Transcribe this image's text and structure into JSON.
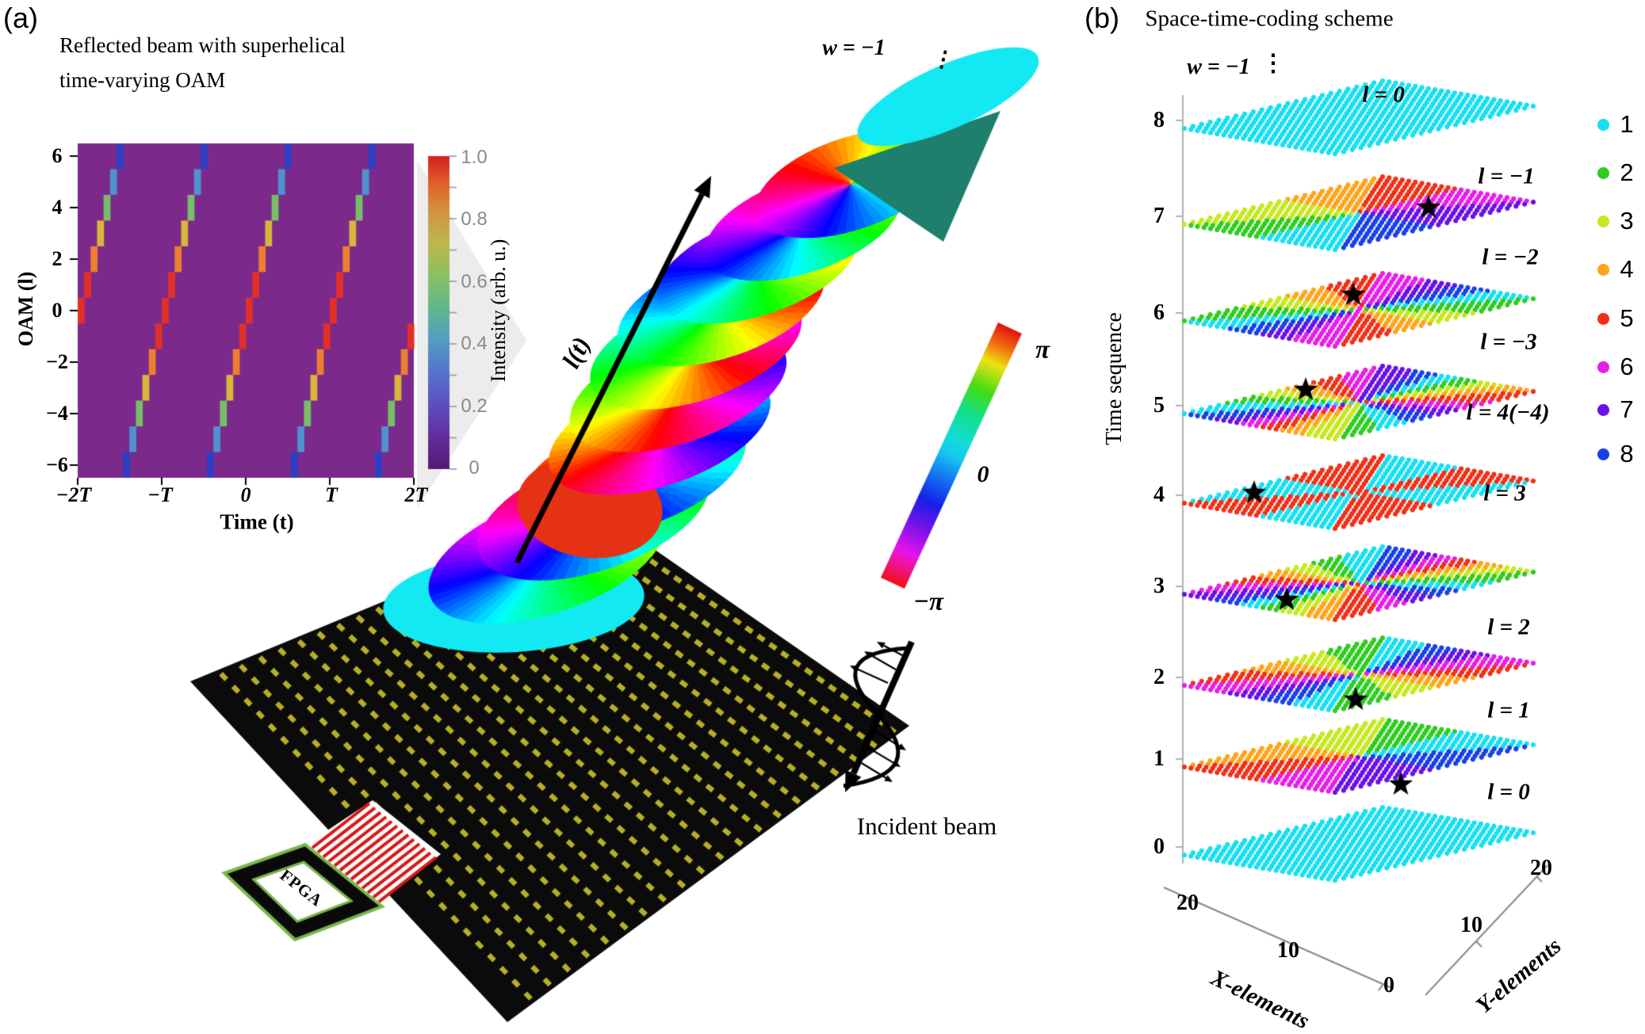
{
  "figure": {
    "panel_a": {
      "tag": "(a)",
      "title_lines": [
        "Reflected beam with superhelical",
        "time-varying OAM"
      ],
      "w_label": "w = −1",
      "ellipsis": "⋮",
      "trajectory_label": "l(t)",
      "incident_beam_label": "Incident beam",
      "fpga_label": "FPGA",
      "phase_bar_ticks": [
        "π",
        "0",
        "−π"
      ]
    },
    "panel_b": {
      "tag": "(b)",
      "title": "Space-time-coding scheme",
      "w_label": "w = −1",
      "ellipsis": "⋮"
    }
  },
  "chart_data": [
    {
      "id": "oam_heatmap",
      "type": "heatmap",
      "title": "Reflected beam with superhelical time-varying OAM",
      "xlabel": "Time (t)",
      "ylabel": "OAM (l)",
      "xtick_labels": [
        "−2T",
        "−T",
        "0",
        "T",
        "2T"
      ],
      "ytick_labels": [
        "6",
        "4",
        "2",
        "0",
        "−2",
        "−4",
        "−6"
      ],
      "ylim": [
        -6.5,
        6.5
      ],
      "periods_shown": 4,
      "steps_per_period": 13,
      "l_step_sequence": [
        0,
        1,
        2,
        3,
        4,
        5,
        6,
        -6,
        -5,
        -4,
        -3,
        -2,
        -1
      ],
      "intensity_by_abs_l": {
        "0": 1.0,
        "1": 0.95,
        "2": 0.8,
        "3": 0.62,
        "4": 0.47,
        "5": 0.3,
        "6": 0.17
      },
      "cell_colors_by_abs_l": {
        "0": "#e23027",
        "1": "#e23027",
        "2": "#ee7f30",
        "3": "#d9b63b",
        "4": "#77be66",
        "5": "#4e92ce",
        "6": "#2d3fc4"
      },
      "background_color": "#7b2a8c",
      "grid": false,
      "colorbar": {
        "label": "Intensity (arb. u.)",
        "tick_labels": [
          "1.0",
          "0.8",
          "0.6",
          "0.4",
          "0.2",
          "0"
        ]
      }
    },
    {
      "id": "space_time_coding",
      "type": "scatter",
      "title": "Space-time-coding scheme",
      "xlabel": "X-elements",
      "ylabel": "Y-elements",
      "zlabel": "Time sequence",
      "x_range": [
        0,
        20
      ],
      "y_range": [
        0,
        20
      ],
      "time_tick_labels": [
        "8",
        "7",
        "6",
        "5",
        "4",
        "3",
        "2",
        "1",
        "0"
      ],
      "x_tick_labels": [
        "20",
        "10",
        "0"
      ],
      "y_tick_labels": [
        "10",
        "20"
      ],
      "grid_points_per_side": 24,
      "phase_levels": 8,
      "layers": [
        {
          "time": 0,
          "oam": 0,
          "label": "l = 0",
          "coding": "uniform"
        },
        {
          "time": 1,
          "oam": 1,
          "label": "l = 1",
          "coding": "8-level"
        },
        {
          "time": 2,
          "oam": 2,
          "label": "l = 2",
          "coding": "8-level"
        },
        {
          "time": 3,
          "oam": 3,
          "label": "l = 3",
          "coding": "8-level"
        },
        {
          "time": 4,
          "oam": 4,
          "label": "l = 4(−4)",
          "coding": "2-level"
        },
        {
          "time": 5,
          "oam": -3,
          "label": "l = −3",
          "coding": "8-level"
        },
        {
          "time": 6,
          "oam": -2,
          "label": "l = −2",
          "coding": "8-level"
        },
        {
          "time": 7,
          "oam": -1,
          "label": "l = −1",
          "coding": "8-level"
        },
        {
          "time": 8,
          "oam": 0,
          "label": "l = 0",
          "coding": "uniform"
        }
      ],
      "legend": [
        {
          "label": "1",
          "color": "#16dff2"
        },
        {
          "label": "2",
          "color": "#2ecc1f"
        },
        {
          "label": "3",
          "color": "#c6e81e"
        },
        {
          "label": "4",
          "color": "#ffa41a"
        },
        {
          "label": "5",
          "color": "#f03018"
        },
        {
          "label": "6",
          "color": "#e81ee8"
        },
        {
          "label": "7",
          "color": "#6a10e8"
        },
        {
          "label": "8",
          "color": "#1840e8"
        }
      ],
      "legend_position": "right",
      "star_marked_times": [
        7,
        6,
        5,
        4,
        3,
        2,
        1
      ]
    }
  ]
}
